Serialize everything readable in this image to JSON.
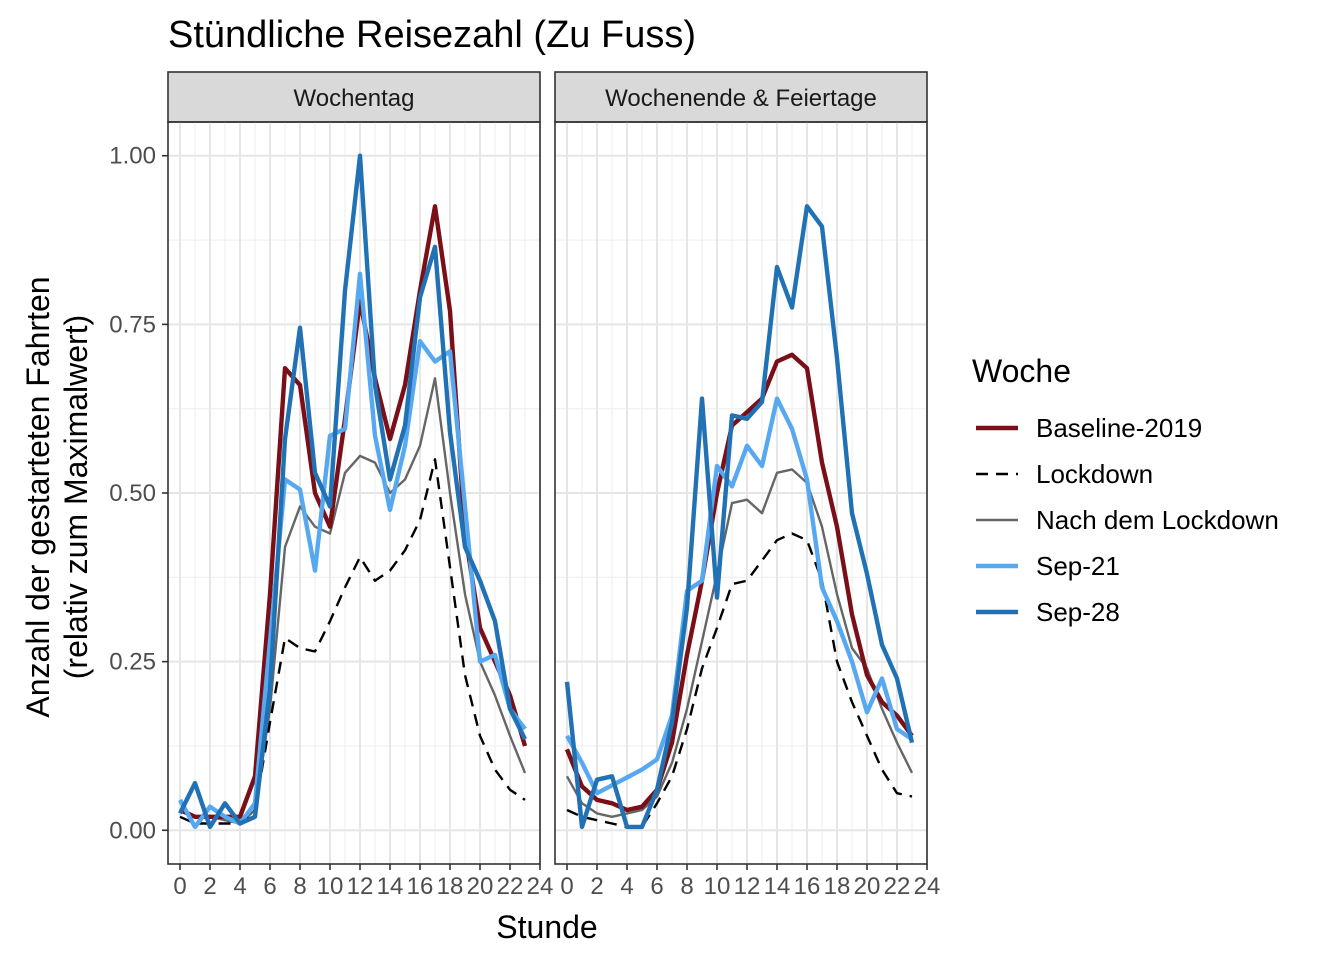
{
  "chart_data": {
    "type": "line",
    "title": "Stündliche Reisezahl (Zu Fuss)",
    "xlabel": "Stunde",
    "ylabel_line1": "Anzahl der gestarteten Fahrten",
    "ylabel_line2": "(relativ zum Maximalwert)",
    "xlim": [
      -0.8,
      24
    ],
    "ylim": [
      -0.05,
      1.05
    ],
    "x_ticks": [
      0,
      2,
      4,
      6,
      8,
      10,
      12,
      14,
      16,
      18,
      20,
      22,
      24
    ],
    "x_tick_labels": [
      "0",
      "2",
      "4",
      "6",
      "8",
      "10",
      "12",
      "14",
      "16",
      "18",
      "20",
      "22",
      "24"
    ],
    "y_ticks": [
      0,
      0.25,
      0.5,
      0.75,
      1.0
    ],
    "y_tick_labels": [
      "0.00",
      "0.25",
      "0.50",
      "0.75",
      "1.00"
    ],
    "legend_title": "Woche",
    "legend_position": "right",
    "grid": true,
    "panels": [
      {
        "label": "Wochentag",
        "series": [
          {
            "name": "Nach dem Lockdown",
            "color": "#666666",
            "style": "solid",
            "width": "thin",
            "x": [
              0,
              1,
              2,
              3,
              4,
              5,
              6,
              7,
              8,
              9,
              10,
              11,
              12,
              13,
              14,
              15,
              16,
              17,
              18,
              19,
              20,
              21,
              22,
              23
            ],
            "y": [
              0.03,
              0.02,
              0.02,
              0.015,
              0.01,
              0.03,
              0.18,
              0.42,
              0.48,
              0.45,
              0.44,
              0.53,
              0.555,
              0.545,
              0.5,
              0.52,
              0.57,
              0.67,
              0.5,
              0.35,
              0.25,
              0.2,
              0.14,
              0.085
            ]
          },
          {
            "name": "Lockdown",
            "color": "#000000",
            "style": "dashed",
            "width": "thin",
            "x": [
              0,
              1,
              2,
              3,
              4,
              5,
              6,
              7,
              8,
              9,
              10,
              11,
              12,
              13,
              14,
              15,
              16,
              17,
              18,
              19,
              20,
              21,
              22,
              23
            ],
            "y": [
              0.02,
              0.01,
              0.01,
              0.01,
              0.01,
              0.03,
              0.16,
              0.285,
              0.27,
              0.265,
              0.31,
              0.36,
              0.405,
              0.37,
              0.385,
              0.415,
              0.46,
              0.55,
              0.39,
              0.23,
              0.14,
              0.09,
              0.06,
              0.045
            ]
          },
          {
            "name": "Baseline-2019",
            "color": "#7a0f17",
            "style": "solid",
            "width": "thick",
            "x": [
              0,
              1,
              2,
              3,
              4,
              5,
              6,
              7,
              8,
              9,
              10,
              11,
              12,
              13,
              14,
              15,
              16,
              17,
              18,
              19,
              20,
              21,
              22,
              23
            ],
            "y": [
              0.03,
              0.02,
              0.02,
              0.02,
              0.02,
              0.08,
              0.35,
              0.685,
              0.66,
              0.5,
              0.45,
              0.61,
              0.785,
              0.67,
              0.58,
              0.66,
              0.8,
              0.925,
              0.77,
              0.44,
              0.3,
              0.25,
              0.2,
              0.125
            ]
          },
          {
            "name": "Sep-21",
            "color": "#56a8f0",
            "style": "solid",
            "width": "thick",
            "x": [
              0,
              1,
              2,
              3,
              4,
              5,
              6,
              7,
              8,
              9,
              10,
              11,
              12,
              13,
              14,
              15,
              16,
              17,
              18,
              19,
              20,
              21,
              22,
              23
            ],
            "y": [
              0.045,
              0.005,
              0.035,
              0.02,
              0.01,
              0.04,
              0.28,
              0.52,
              0.505,
              0.385,
              0.585,
              0.595,
              0.825,
              0.585,
              0.475,
              0.57,
              0.725,
              0.695,
              0.71,
              0.48,
              0.25,
              0.26,
              0.18,
              0.15
            ]
          },
          {
            "name": "Sep-28",
            "color": "#2171b5",
            "style": "solid",
            "width": "thick",
            "x": [
              0,
              1,
              2,
              3,
              4,
              5,
              6,
              7,
              8,
              9,
              10,
              11,
              12,
              13,
              14,
              15,
              16,
              17,
              18,
              19,
              20,
              21,
              22,
              23
            ],
            "y": [
              0.025,
              0.07,
              0.005,
              0.04,
              0.01,
              0.02,
              0.21,
              0.58,
              0.745,
              0.53,
              0.48,
              0.8,
              1.0,
              0.66,
              0.52,
              0.6,
              0.79,
              0.865,
              0.59,
              0.42,
              0.37,
              0.31,
              0.18,
              0.135
            ]
          }
        ]
      },
      {
        "label": "Wochenende & Feiertage",
        "series": [
          {
            "name": "Nach dem Lockdown",
            "color": "#666666",
            "style": "solid",
            "width": "thin",
            "x": [
              0,
              1,
              2,
              3,
              4,
              5,
              6,
              7,
              8,
              9,
              10,
              11,
              12,
              13,
              14,
              15,
              16,
              17,
              18,
              19,
              20,
              21,
              22,
              23
            ],
            "y": [
              0.08,
              0.04,
              0.025,
              0.02,
              0.025,
              0.03,
              0.05,
              0.1,
              0.18,
              0.28,
              0.38,
              0.485,
              0.49,
              0.47,
              0.53,
              0.535,
              0.515,
              0.45,
              0.35,
              0.27,
              0.24,
              0.18,
              0.13,
              0.085
            ]
          },
          {
            "name": "Lockdown",
            "color": "#000000",
            "style": "dashed",
            "width": "thin",
            "x": [
              0,
              1,
              2,
              3,
              4,
              5,
              6,
              7,
              8,
              9,
              10,
              11,
              12,
              13,
              14,
              15,
              16,
              17,
              18,
              19,
              20,
              21,
              22,
              23
            ],
            "y": [
              0.03,
              0.02,
              0.015,
              0.01,
              0.005,
              0.005,
              0.04,
              0.08,
              0.15,
              0.24,
              0.3,
              0.365,
              0.37,
              0.4,
              0.43,
              0.44,
              0.43,
              0.37,
              0.25,
              0.19,
              0.14,
              0.09,
              0.055,
              0.05
            ]
          },
          {
            "name": "Baseline-2019",
            "color": "#7a0f17",
            "style": "solid",
            "width": "thick",
            "x": [
              0,
              1,
              2,
              3,
              4,
              5,
              6,
              7,
              8,
              9,
              10,
              11,
              12,
              13,
              14,
              15,
              16,
              17,
              18,
              19,
              20,
              21,
              22,
              23
            ],
            "y": [
              0.12,
              0.065,
              0.045,
              0.04,
              0.03,
              0.035,
              0.06,
              0.13,
              0.26,
              0.37,
              0.5,
              0.6,
              0.62,
              0.64,
              0.695,
              0.705,
              0.685,
              0.545,
              0.45,
              0.32,
              0.23,
              0.19,
              0.17,
              0.14
            ]
          },
          {
            "name": "Sep-21",
            "color": "#56a8f0",
            "style": "solid",
            "width": "thick",
            "x": [
              0,
              1,
              2,
              5,
              6,
              7,
              8,
              9,
              10,
              11,
              12,
              13,
              14,
              15,
              16,
              17,
              18,
              19,
              20,
              21,
              22,
              23
            ],
            "y": [
              0.14,
              0.1,
              0.055,
              0.09,
              0.105,
              0.17,
              0.355,
              0.37,
              0.54,
              0.51,
              0.57,
              0.54,
              0.64,
              0.595,
              0.52,
              0.36,
              0.31,
              0.25,
              0.175,
              0.225,
              0.15,
              0.135
            ]
          },
          {
            "name": "Sep-28",
            "color": "#2171b5",
            "style": "solid",
            "width": "thick",
            "x": [
              0,
              1,
              2,
              3,
              4,
              5,
              6,
              7,
              8,
              9,
              10,
              11,
              12,
              13,
              14,
              15,
              16,
              17,
              18,
              19,
              20,
              21,
              22,
              23
            ],
            "y": [
              0.22,
              0.005,
              0.075,
              0.08,
              0.005,
              0.005,
              0.06,
              0.16,
              0.33,
              0.64,
              0.345,
              0.615,
              0.61,
              0.635,
              0.835,
              0.775,
              0.925,
              0.895,
              0.7,
              0.47,
              0.38,
              0.275,
              0.225,
              0.13
            ]
          }
        ]
      }
    ],
    "legend_entries": [
      {
        "name": "Baseline-2019",
        "color": "#7a0f17",
        "style": "solid",
        "width": "thick"
      },
      {
        "name": "Lockdown",
        "color": "#000000",
        "style": "dashed",
        "width": "thin"
      },
      {
        "name": "Nach dem Lockdown",
        "color": "#666666",
        "style": "solid",
        "width": "thin"
      },
      {
        "name": "Sep-21",
        "color": "#56a8f0",
        "style": "solid",
        "width": "thick"
      },
      {
        "name": "Sep-28",
        "color": "#2171b5",
        "style": "solid",
        "width": "thick"
      }
    ]
  }
}
